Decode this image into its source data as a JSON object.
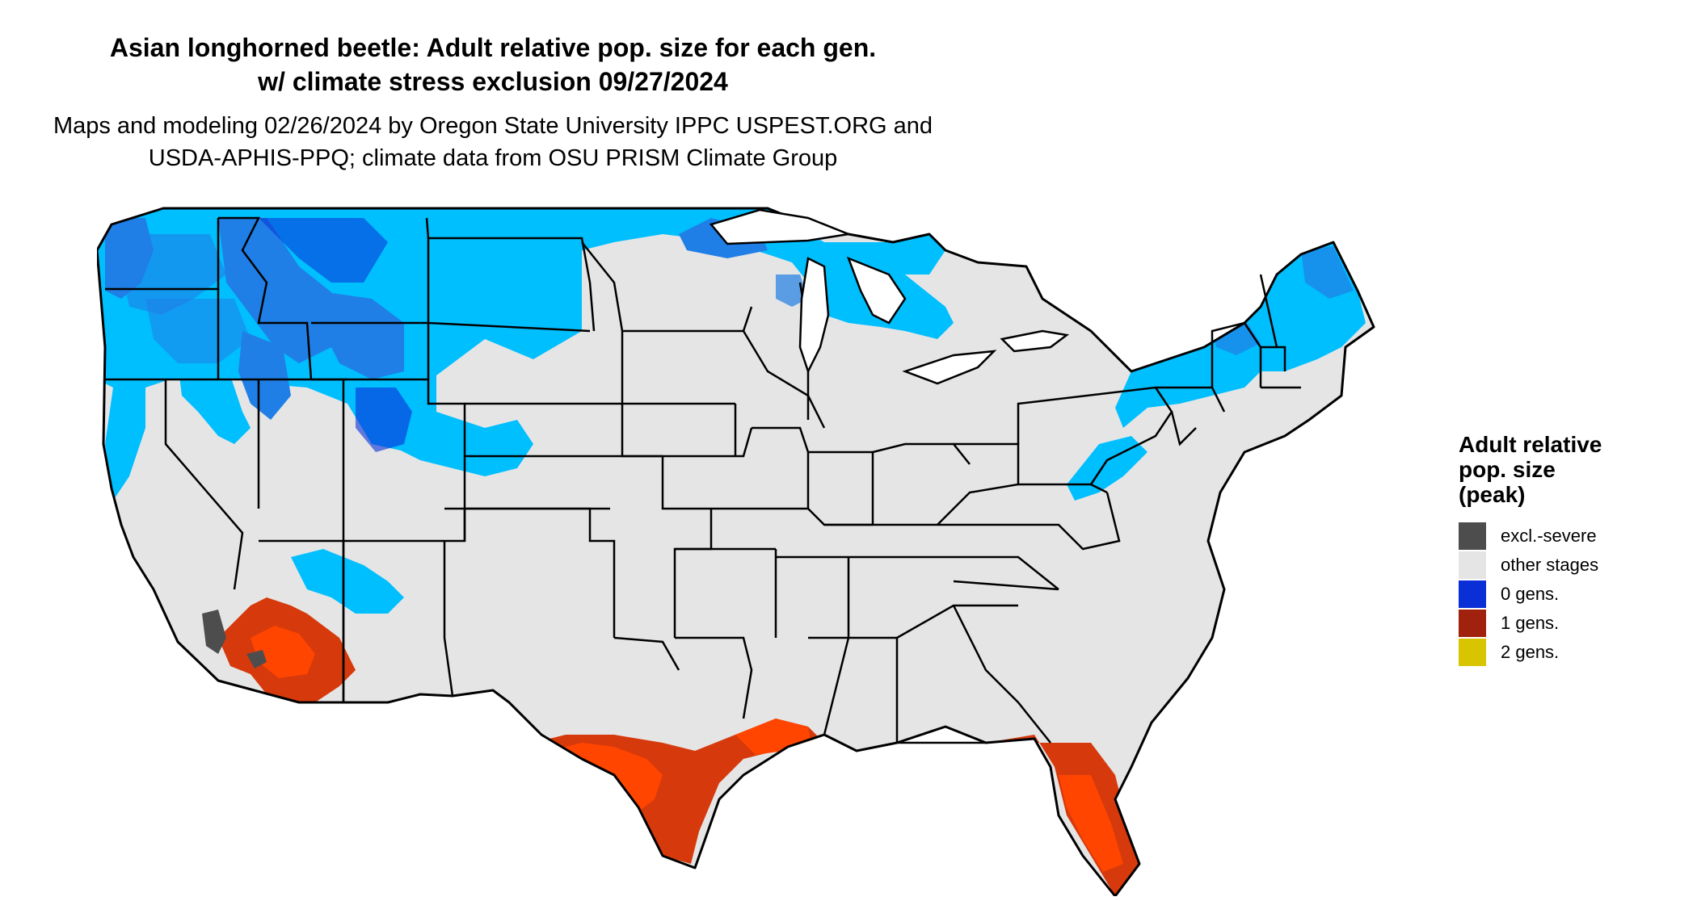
{
  "title": {
    "line1": "Asian longhorned beetle: Adult relative pop. size for each gen.",
    "line2": "w/ climate stress exclusion 09/27/2024"
  },
  "subtitle": {
    "line1": "Maps and modeling 02/26/2024 by Oregon State University IPPC USPEST.ORG and",
    "line2": "USDA-APHIS-PPQ; climate data from OSU PRISM Climate Group"
  },
  "legend": {
    "title_lines": [
      "Adult relative",
      "pop. size",
      "(peak)"
    ],
    "items": [
      {
        "label": "excl.-severe",
        "color": "#4d4d4d"
      },
      {
        "label": "other stages",
        "color": "#e5e5e5"
      },
      {
        "label": "0 gens.",
        "color": "#0a2fd6"
      },
      {
        "label": "1 gens.",
        "color": "#a0210e"
      },
      {
        "label": "2 gens.",
        "color": "#d8c400"
      }
    ]
  },
  "map": {
    "region": "contiguous-united-states",
    "colors": {
      "land": "#e5e5e5",
      "border": "#000000",
      "cold_light": "#00bfff",
      "cold_mid": "#1f7fe6",
      "cold_dark": "#0a2fd6",
      "warm_light": "#ff4500",
      "warm_mid": "#d63a0c",
      "warm_dark": "#a0210e",
      "excluded": "#4d4d4d"
    }
  }
}
